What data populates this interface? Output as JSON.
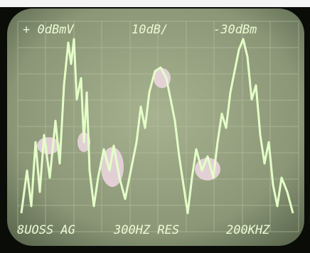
{
  "screen": {
    "top_labels": [
      "+ 0dBmV",
      "10dB/",
      "-30dBm"
    ],
    "bottom_labels": [
      "8UOSS AG",
      "300HZ RES",
      "200KHZ"
    ]
  }
}
